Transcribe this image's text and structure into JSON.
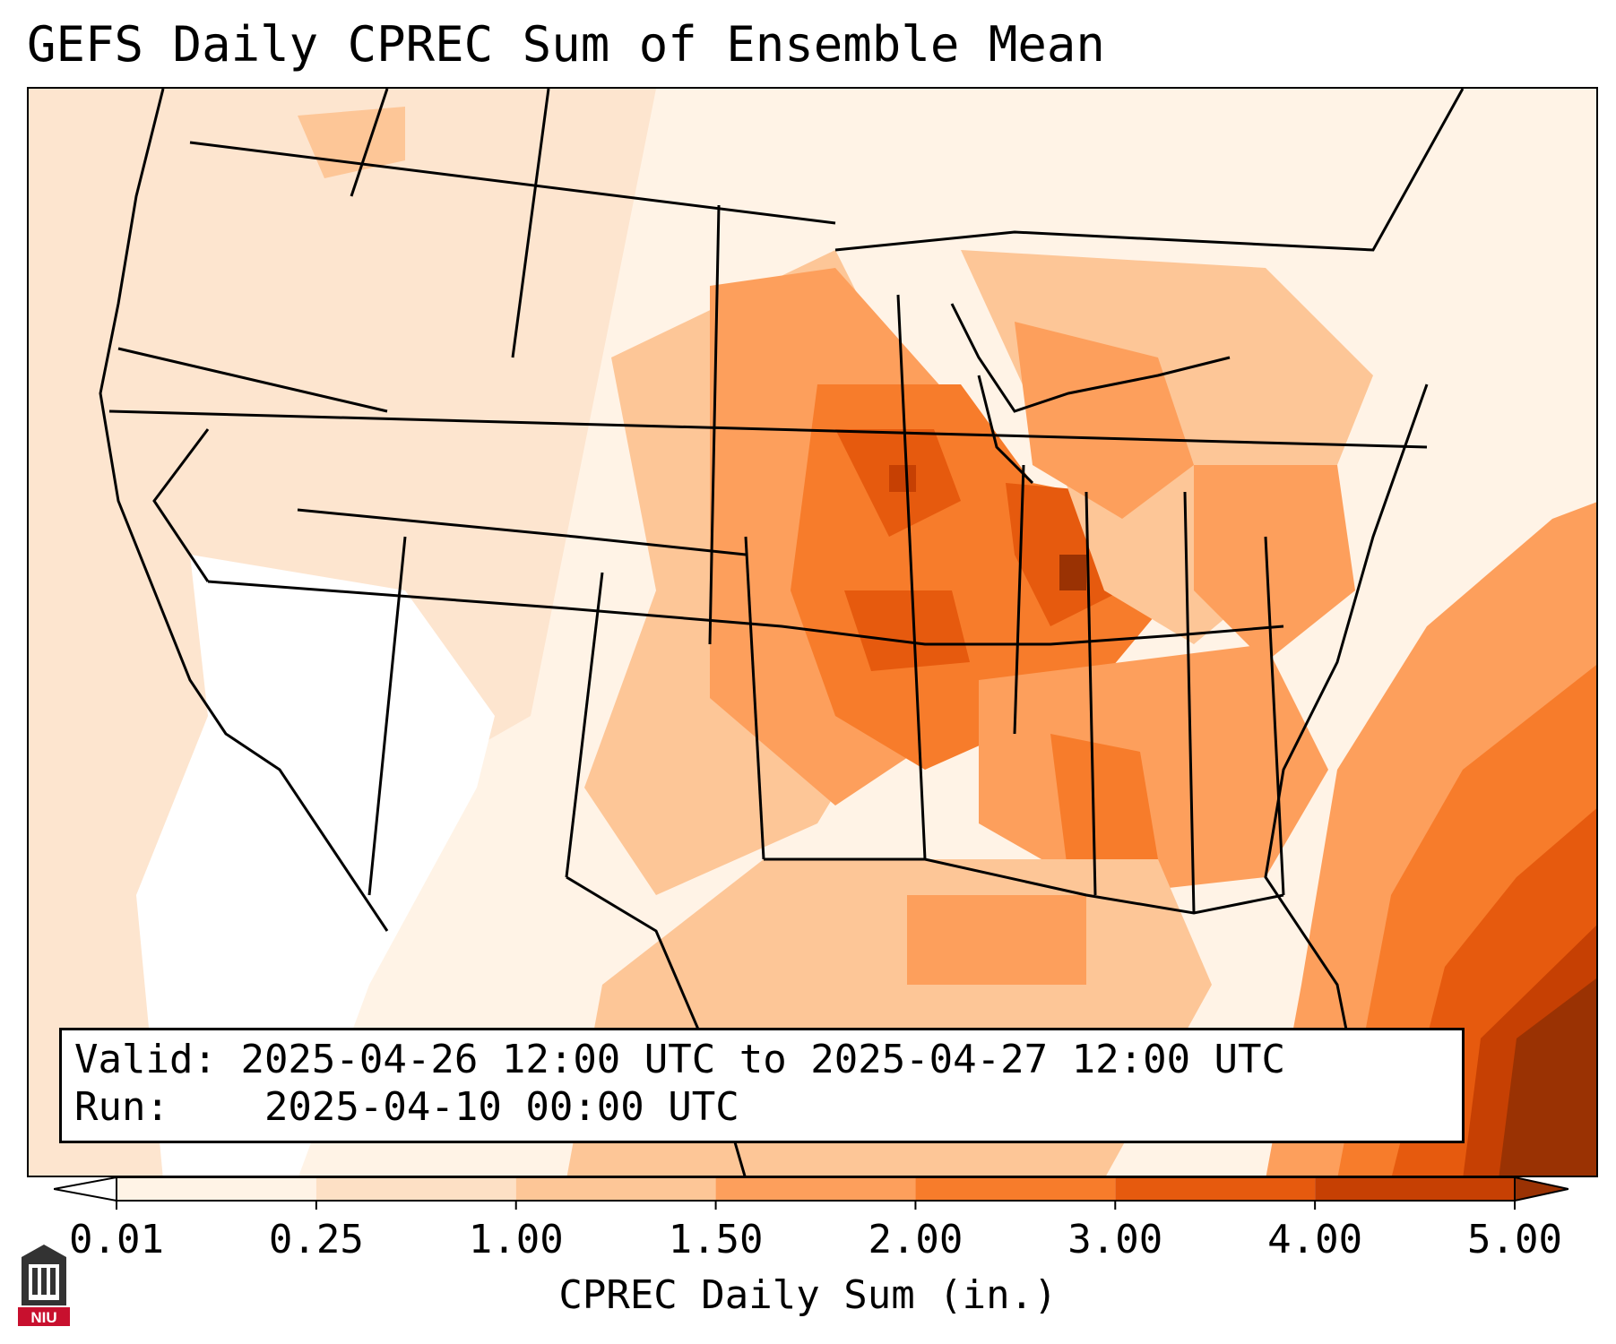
{
  "title": "GEFS Daily CPREC Sum of Ensemble Mean",
  "info": {
    "valid_label": "Valid:",
    "valid_value": "2025-04-26 12:00 UTC to 2025-04-27 12:00 UTC",
    "run_label": "Run:",
    "run_value": "2025-04-10 00:00 UTC"
  },
  "colorbar": {
    "label": "CPREC Daily Sum (in.)",
    "ticks": [
      "0.01",
      "0.25",
      "1.00",
      "1.50",
      "2.00",
      "3.00",
      "4.00",
      "5.00"
    ],
    "colors": [
      "#fff3e6",
      "#fde0c5",
      "#fdc697",
      "#fd9f5c",
      "#f77c2b",
      "#e65a0e",
      "#c64003",
      "#9a3203"
    ]
  },
  "logo": {
    "text": "NIU",
    "color": "#c8102e"
  }
}
